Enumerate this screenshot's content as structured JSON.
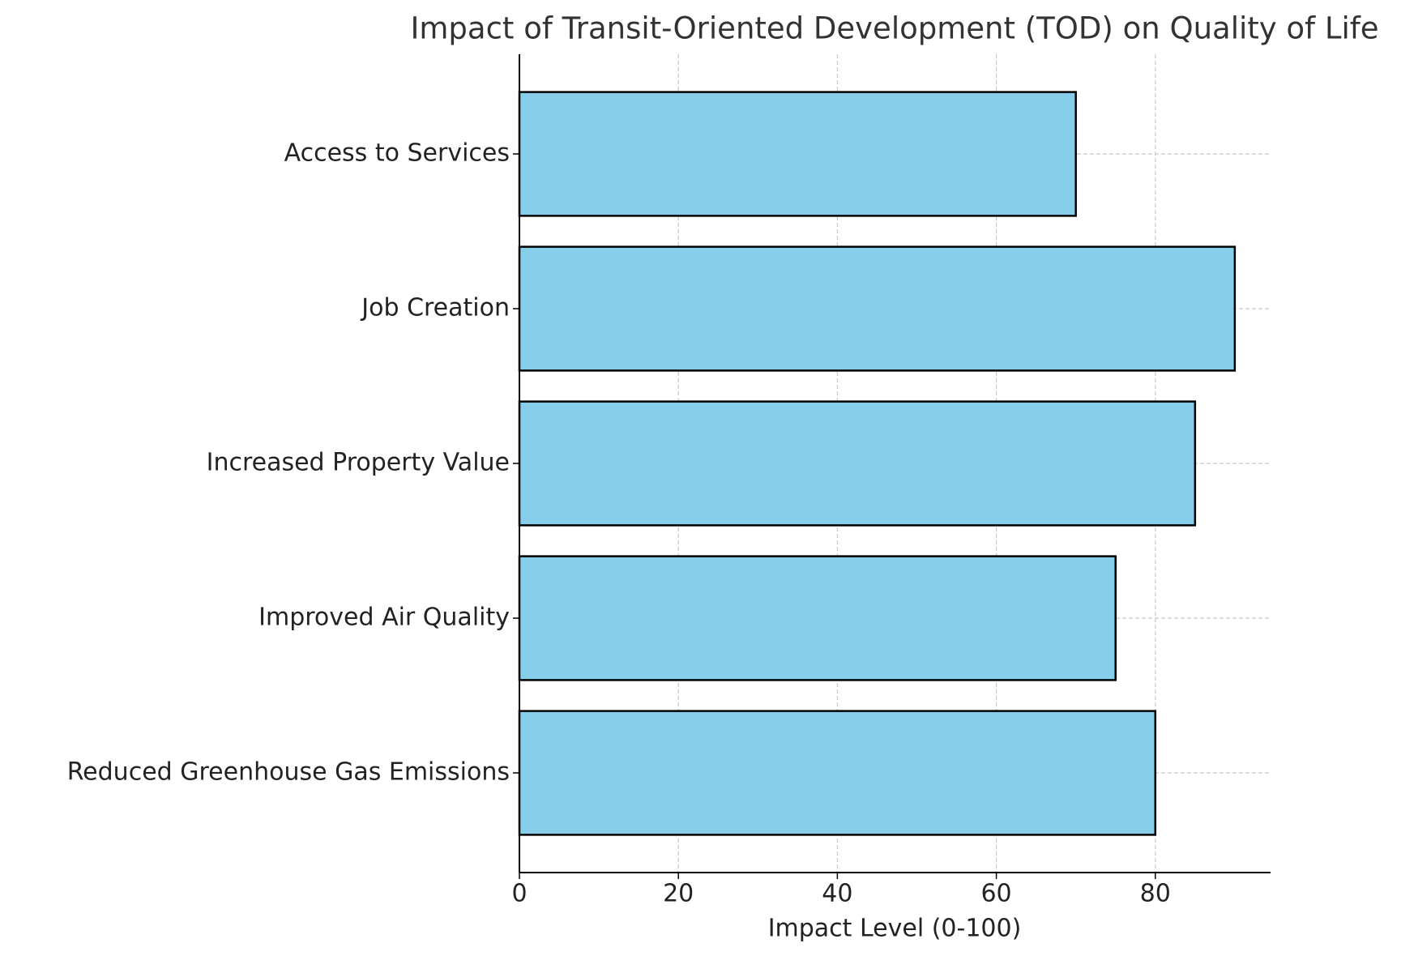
{
  "chart_data": {
    "type": "barh",
    "title": "Impact of Transit-Oriented Development (TOD) on Quality of Life",
    "xlabel": "Impact Level (0-100)",
    "categories": [
      "Access to Services",
      "Job Creation",
      "Increased Property Value",
      "Improved Air Quality",
      "Reduced Greenhouse Gas Emissions"
    ],
    "values": [
      70,
      90,
      85,
      75,
      80
    ],
    "color": "#87ceeb",
    "xlim": [
      0,
      94.5
    ],
    "xticks": [
      0,
      20,
      40,
      60,
      80
    ],
    "grid": true
  }
}
